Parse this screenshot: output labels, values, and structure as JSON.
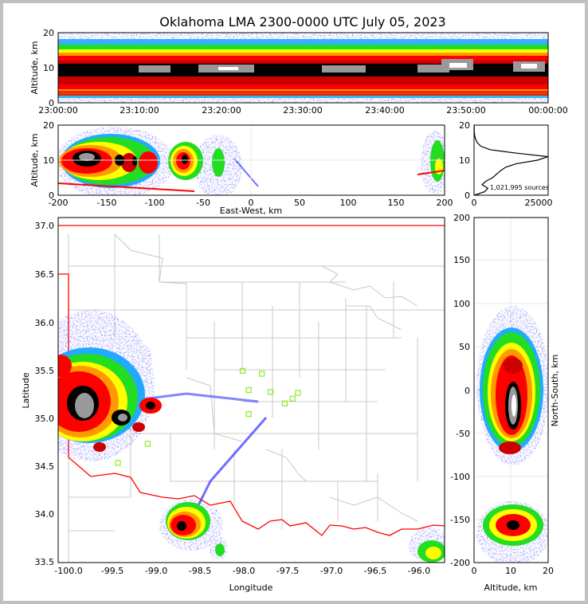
{
  "title": "Oklahoma LMA 2300-0000 UTC July 05, 2023",
  "time_height": {
    "ylabel": "Altitude, km",
    "y_ticks": [
      "0",
      "10",
      "20"
    ],
    "x_ticks": [
      "23:00:00",
      "23:10:00",
      "23:20:00",
      "23:30:00",
      "23:40:00",
      "23:50:00",
      "00:00:00"
    ]
  },
  "ew_panel": {
    "ylabel": "Altitude, km",
    "xlabel": "East-West, km",
    "y_ticks": [
      "0",
      "10",
      "20"
    ],
    "x_ticks": [
      "-200",
      "-150",
      "-100",
      "-50",
      "0",
      "50",
      "100",
      "150",
      "200"
    ]
  },
  "hist_panel": {
    "y_ticks": [
      "0",
      "10",
      "20"
    ],
    "x_ticks": [
      "0",
      "25000"
    ],
    "sources_label": "1,021,995 sources"
  },
  "map_panel": {
    "xlabel": "Longitude",
    "ylabel": "Latitude",
    "x_ticks": [
      "-100.0",
      "-99.5",
      "-99.0",
      "-98.5",
      "-98.0",
      "-97.5",
      "-97.0",
      "-96.5",
      "-96.0"
    ],
    "y_ticks": [
      "33.5",
      "34.0",
      "34.5",
      "35.0",
      "35.5",
      "36.0",
      "36.5",
      "37.0"
    ]
  },
  "ns_panel": {
    "xlabel": "Altitude, km",
    "ylabel": "North-South, km",
    "x_ticks": [
      "0",
      "10",
      "20"
    ],
    "y_ticks": [
      "200",
      "150",
      "100",
      "50",
      "0",
      "-50",
      "-100",
      "-150",
      "-200"
    ]
  },
  "colors": {
    "density_scale": [
      "#3333ff",
      "#22aaff",
      "#22dd22",
      "#ffff00",
      "#ff9900",
      "#ff0000",
      "#cc0000",
      "#000000",
      "#999999",
      "#ffffff"
    ],
    "state_border": "#ff0000",
    "county_lines": "#c8c8c8",
    "station_marker": "#88ee22",
    "profile_line": "#000000"
  },
  "chart_data": [
    {
      "type": "heatmap",
      "description_panel": "time-height",
      "x_range": [
        "23:00:00",
        "00:00:00"
      ],
      "ylim": [
        0,
        20
      ],
      "ylabel": "Altitude, km",
      "dense_core_altitude_km": 10
    },
    {
      "type": "heatmap",
      "description_panel": "east-west vs altitude",
      "xlim": [
        -200,
        200
      ],
      "ylim": [
        0,
        20
      ],
      "xlabel": "East-West, km",
      "ylabel": "Altitude, km",
      "cores_x_km": [
        -170,
        -135,
        -110,
        -75
      ]
    },
    {
      "type": "line",
      "description_panel": "altitude histogram",
      "xlim": [
        0,
        28000
      ],
      "ylim": [
        0,
        20
      ],
      "y": [
        0,
        1,
        2,
        3,
        4,
        5,
        6,
        7,
        8,
        9,
        10,
        11,
        12,
        13,
        14,
        15,
        16,
        17,
        18,
        19,
        20
      ],
      "x": [
        100,
        4000,
        5200,
        3000,
        4500,
        7000,
        8500,
        10000,
        12000,
        16000,
        24000,
        28000,
        16000,
        6000,
        2500,
        1200,
        600,
        250,
        100,
        50,
        20
      ],
      "annotation": "1,021,995 sources"
    },
    {
      "type": "heatmap",
      "description_panel": "plan view map",
      "xlim": [
        -100.1,
        -95.7
      ],
      "ylim": [
        33.47,
        37.07
      ],
      "xlabel": "Longitude",
      "ylabel": "Latitude",
      "stations": [
        [
          -98.0,
          35.47
        ],
        [
          -97.78,
          35.44
        ],
        [
          -97.93,
          35.27
        ],
        [
          -97.68,
          35.25
        ],
        [
          -97.43,
          35.18
        ],
        [
          -97.37,
          35.24
        ],
        [
          -97.52,
          35.13
        ],
        [
          -97.93,
          35.02
        ],
        [
          -99.08,
          34.71
        ],
        [
          -99.42,
          34.51
        ]
      ]
    },
    {
      "type": "heatmap",
      "description_panel": "north-south vs altitude",
      "xlim": [
        0,
        20
      ],
      "ylim": [
        -200,
        200
      ],
      "xlabel": "Altitude, km",
      "ylabel": "North-South, km"
    }
  ]
}
